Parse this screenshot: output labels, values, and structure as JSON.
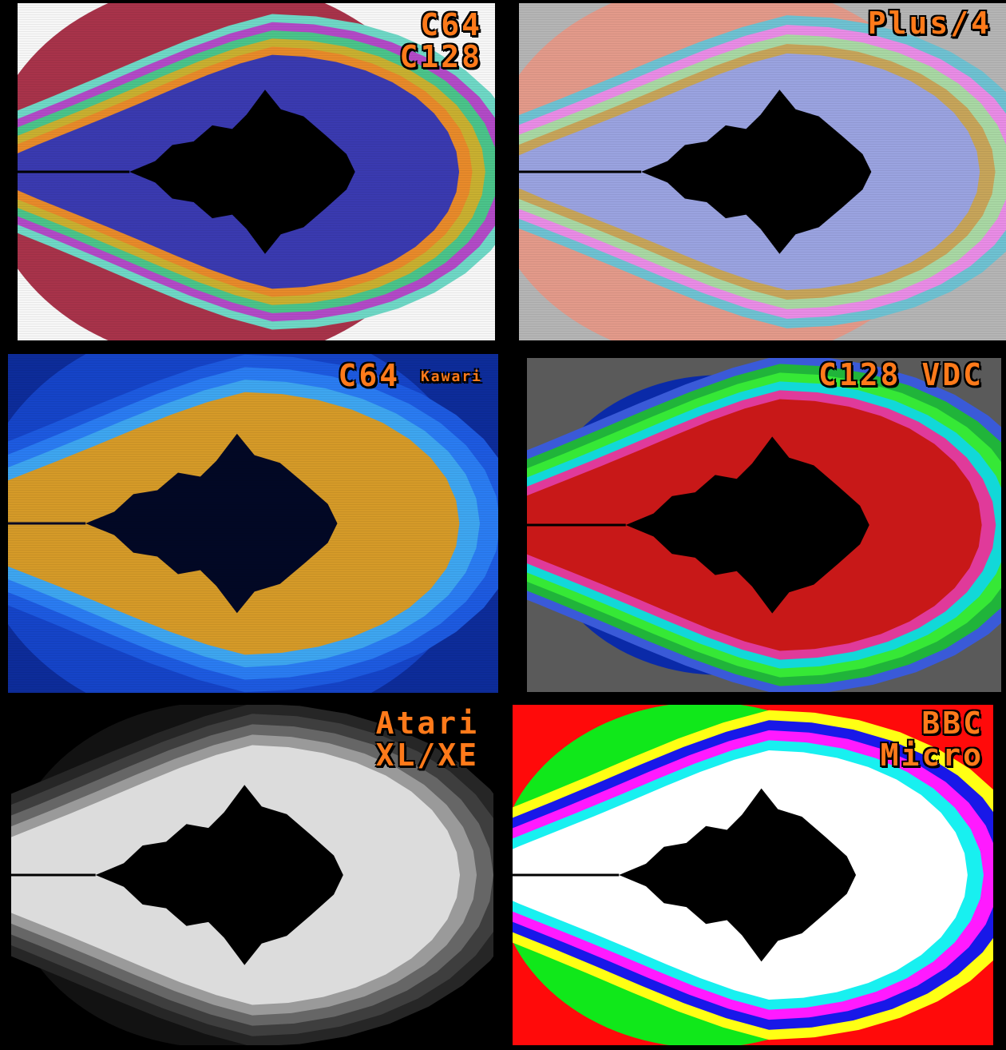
{
  "panels": [
    {
      "label_lines": [
        "C64",
        "C128"
      ],
      "label_small": "",
      "colors": {
        "background": "#f7f7f7",
        "bands": [
          "#a8334a",
          "#6fd8c6",
          "#b24ac7",
          "#4bc48a",
          "#c9b030",
          "#e88a2a",
          "#3a3ab0"
        ],
        "set": "#000000"
      }
    },
    {
      "label_lines": [
        "Plus/4"
      ],
      "label_small": "",
      "colors": {
        "background": "#b5b5b5",
        "bands": [
          "#e39a8a",
          "#6fc2d2",
          "#e98ce6",
          "#a9d8a4",
          "#c7a55a",
          "#9aa3e0"
        ],
        "set": "#000000"
      }
    },
    {
      "label_lines": [
        "C64"
      ],
      "label_small": "Kawari",
      "colors": {
        "background": "#0d2c9a",
        "bands": [
          "#1544c8",
          "#1d5ae0",
          "#2a7cf2",
          "#3ea6f0",
          "#d59a28"
        ],
        "set": "#020825"
      }
    },
    {
      "label_lines": [
        "C128 VDC"
      ],
      "label_small": "",
      "colors": {
        "background": "#5a5a5a",
        "bands": [
          "#0a2aa8",
          "#3a5ad8",
          "#20b43a",
          "#36e836",
          "#12d8d8",
          "#e03a9a",
          "#c81818"
        ],
        "set": "#000000"
      }
    },
    {
      "label_lines": [
        "Atari",
        "XL/XE"
      ],
      "label_small": "",
      "colors": {
        "background": "#000000",
        "bands": [
          "#121212",
          "#262626",
          "#3e3e3e",
          "#666666",
          "#9a9a9a",
          "#dcdcdc"
        ],
        "set": "#000000"
      }
    },
    {
      "label_lines": [
        "BBC",
        "Micro"
      ],
      "label_small": "",
      "colors": {
        "background": "#ff0a0a",
        "bands": [
          "#10e81a",
          "#ffff14",
          "#1818e8",
          "#ff1aff",
          "#18f0f0",
          "#ffffff"
        ],
        "set": "#000000"
      }
    }
  ]
}
